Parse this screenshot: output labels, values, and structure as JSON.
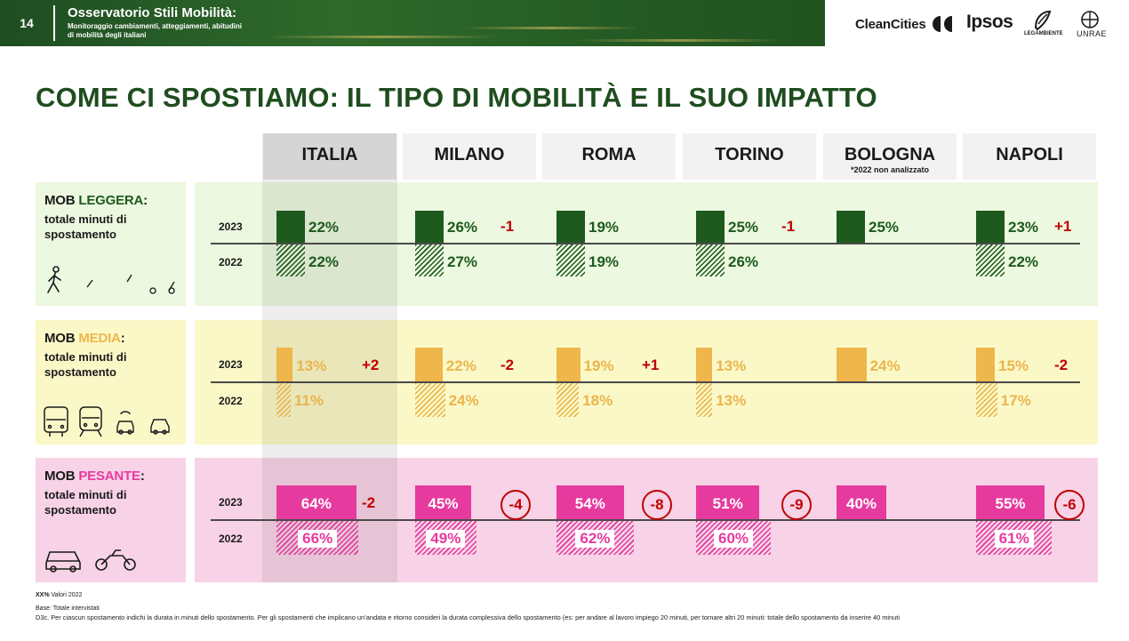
{
  "header": {
    "page_number": "14",
    "title": "Osservatorio Stili Mobilità:",
    "subtitle": "Monitoraggio cambiamenti, atteggiamenti, abitudini di mobilità degli italiani",
    "logos": [
      "CleanCities",
      "Ipsos",
      "LEGAMBIENTE",
      "UNRAE"
    ]
  },
  "title": "COME CI SPOSTIAMO: IL TIPO DI MOBILITÀ E IL SUO IMPATTO",
  "columns": [
    {
      "name": "ITALIA",
      "note": ""
    },
    {
      "name": "MILANO",
      "note": ""
    },
    {
      "name": "ROMA",
      "note": ""
    },
    {
      "name": "TORINO",
      "note": ""
    },
    {
      "name": "BOLOGNA",
      "note": "*2022 non analizzato"
    },
    {
      "name": "NAPOLI",
      "note": ""
    }
  ],
  "rows": [
    {
      "prefix": "MOB ",
      "accent": "LEGGERA",
      "suffix": ":",
      "sub": "totale minuti di spostamento",
      "icons": [
        "walking-icon",
        "bicycle-icon",
        "scooter-icon",
        "kick-scooter-icon"
      ]
    },
    {
      "prefix": "MOB ",
      "accent": "MEDIA",
      "suffix": ":",
      "sub": "totale minuti di spostamento",
      "icons": [
        "bus-icon",
        "train-icon",
        "car-sharing-icon",
        "taxi-icon"
      ]
    },
    {
      "prefix": "MOB ",
      "accent": "PESANTE",
      "suffix": ":",
      "sub": "totale minuti di spostamento",
      "icons": [
        "car-icon",
        "motorcycle-icon"
      ]
    }
  ],
  "years": [
    "2023",
    "2022"
  ],
  "colors": {
    "leggera": "#1e5a1e",
    "leggera_bg": "#ecf8df",
    "media": "#eeb64b",
    "media_bg": "#fbf8c8",
    "pesante": "#e63a9e",
    "pesante_bg": "#f8d2e6",
    "delta": "#c00000",
    "title": "#1f4d1f"
  },
  "chart_data": {
    "type": "bar",
    "categories": [
      "ITALIA",
      "MILANO",
      "ROMA",
      "TORINO",
      "BOLOGNA",
      "NAPOLI"
    ],
    "series": [
      {
        "name": "MOB LEGGERA",
        "year": "2023",
        "values": [
          22,
          26,
          19,
          25,
          25,
          23
        ],
        "labels": [
          "22%",
          "26%",
          "19%",
          "25%",
          "25%",
          "23%"
        ]
      },
      {
        "name": "MOB LEGGERA",
        "year": "2022",
        "values": [
          22,
          27,
          19,
          26,
          null,
          22
        ],
        "labels": [
          "22%",
          "27%",
          "19%",
          "26%",
          "",
          "22%"
        ]
      },
      {
        "name": "MOB MEDIA",
        "year": "2023",
        "values": [
          13,
          22,
          19,
          13,
          24,
          15
        ],
        "labels": [
          "13%",
          "22%",
          "19%",
          "13%",
          "24%",
          "15%"
        ]
      },
      {
        "name": "MOB MEDIA",
        "year": "2022",
        "values": [
          11,
          24,
          18,
          13,
          null,
          17
        ],
        "labels": [
          "11%",
          "24%",
          "18%",
          "13%",
          "",
          "17%"
        ]
      },
      {
        "name": "MOB PESANTE",
        "year": "2023",
        "values": [
          64,
          45,
          54,
          51,
          40,
          55
        ],
        "labels": [
          "64%",
          "45%",
          "54%",
          "51%",
          "40%",
          "55%"
        ]
      },
      {
        "name": "MOB PESANTE",
        "year": "2022",
        "values": [
          66,
          49,
          62,
          60,
          null,
          61
        ],
        "labels": [
          "66%",
          "49%",
          "62%",
          "60%",
          "",
          "61%"
        ]
      }
    ],
    "deltas": {
      "MOB LEGGERA": [
        "",
        "-1",
        "",
        "-1",
        "",
        "+1"
      ],
      "MOB MEDIA": [
        "+2",
        "-2",
        "+1",
        "",
        "",
        "-2"
      ],
      "MOB PESANTE": [
        "-2",
        "-4",
        "-8",
        "-9",
        "",
        "-6"
      ]
    },
    "circled_deltas": {
      "MOB PESANTE": [
        false,
        true,
        true,
        true,
        false,
        true
      ]
    }
  },
  "footer": {
    "legend_key": "XX%",
    "legend_text": "Valori 2022",
    "base": "Base: Totale intervistati",
    "question": "D3c. Per ciascun spostamento indichi la durata in minuti dello spostamento. Per gli spostamenti che implicano un’andata e ritorno consideri la durata complessiva dello spostamento (es: per andare al lavoro impiego 20 minuti, per tornare altri 20 minuti: totale dello spostamento da inserire 40 minuti"
  }
}
